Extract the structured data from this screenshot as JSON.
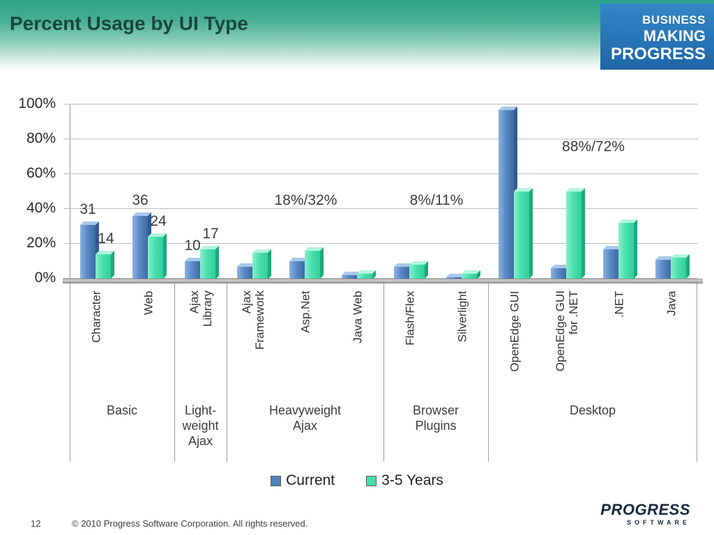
{
  "header": {
    "title": "Percent Usage by UI Type",
    "logo": {
      "line1": "BUSINESS",
      "line2": "MAKING",
      "line3": "PROGRESS"
    }
  },
  "footer": {
    "page_number": "12",
    "copyright": "© 2010 Progress Software Corporation. All rights reserved.",
    "logo_line1": "PROGRESS",
    "logo_line2": "SOFTWARE"
  },
  "chart_data": {
    "type": "bar",
    "title": "Percent Usage by UI Type",
    "ylim": [
      0,
      100
    ],
    "grid": true,
    "legend_position": "bottom",
    "yticks": [
      {
        "value": 100,
        "label": "100%"
      },
      {
        "value": 80,
        "label": "80%"
      },
      {
        "value": 60,
        "label": "60%"
      },
      {
        "value": 40,
        "label": "40%"
      },
      {
        "value": 20,
        "label": "20%"
      },
      {
        "value": 0,
        "label": "0%"
      }
    ],
    "categories": [
      {
        "label_lines": [
          "Character"
        ]
      },
      {
        "label_lines": [
          "Web"
        ]
      },
      {
        "label_lines": [
          "Ajax",
          "Library"
        ]
      },
      {
        "label_lines": [
          "Ajax",
          "Framework"
        ]
      },
      {
        "label_lines": [
          "Asp.Net"
        ]
      },
      {
        "label_lines": [
          "Java Web"
        ]
      },
      {
        "label_lines": [
          "Flash/Flex"
        ]
      },
      {
        "label_lines": [
          "Silverlight"
        ]
      },
      {
        "label_lines": [
          "OpenEdge GUI"
        ]
      },
      {
        "label_lines": [
          "OpenEdge GUI",
          "for .NET"
        ]
      },
      {
        "label_lines": [
          ".NET"
        ]
      },
      {
        "label_lines": [
          "Java"
        ]
      }
    ],
    "groups": [
      {
        "label_lines": [
          "Basic"
        ],
        "span": [
          0,
          1
        ]
      },
      {
        "label_lines": [
          "Light-",
          "weight",
          "Ajax"
        ],
        "span": [
          2,
          2
        ]
      },
      {
        "label_lines": [
          "Heavyweight",
          "Ajax"
        ],
        "span": [
          3,
          5
        ]
      },
      {
        "label_lines": [
          "Browser",
          "Plugins"
        ],
        "span": [
          6,
          7
        ]
      },
      {
        "label_lines": [
          "Desktop"
        ],
        "span": [
          8,
          11
        ]
      }
    ],
    "series": [
      {
        "name": "Current",
        "color": "#4f81bd",
        "values": [
          31,
          36,
          10,
          7,
          10,
          2,
          7,
          1,
          97,
          6,
          17,
          11
        ]
      },
      {
        "name": "3-5 Years",
        "color": "#41dfa7",
        "values": [
          14,
          24,
          17,
          15,
          16,
          3,
          8,
          3,
          50,
          50,
          32,
          12
        ]
      }
    ],
    "bar_labels": [
      {
        "cat": 0,
        "series": 0,
        "text": "31"
      },
      {
        "cat": 0,
        "series": 1,
        "text": "14"
      },
      {
        "cat": 1,
        "series": 0,
        "text": "36"
      },
      {
        "cat": 1,
        "series": 1,
        "text": "24"
      },
      {
        "cat": 2,
        "series": 0,
        "text": "10"
      },
      {
        "cat": 2,
        "series": 1,
        "text": "17"
      }
    ],
    "annotations": [
      {
        "text": "18%/32%",
        "group_index": 2,
        "y_pct": 40
      },
      {
        "text": "8%/11%",
        "group_index": 3,
        "y_pct": 40
      },
      {
        "text": "88%/72%",
        "group_index": 4,
        "y_pct": 71
      }
    ]
  }
}
